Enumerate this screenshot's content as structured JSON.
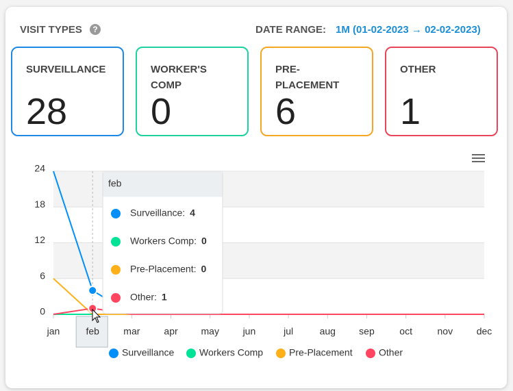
{
  "header": {
    "title": "VISIT TYPES",
    "range_label": "DATE RANGE:",
    "range_value": "1M (01-02-2023 → 02-02-2023)"
  },
  "cards": [
    {
      "label": "SURVEILLANCE",
      "value": "28",
      "color": "#1e88e5"
    },
    {
      "label": "WORKER'S COMP",
      "value": "0",
      "color": "#1dd1a1"
    },
    {
      "label": "PRE-PLACEMENT",
      "value": "6",
      "color": "#f5a623"
    },
    {
      "label": "OTHER",
      "value": "1",
      "color": "#e8455a"
    }
  ],
  "chart_data": {
    "type": "line",
    "categories": [
      "jan",
      "feb",
      "mar",
      "apr",
      "may",
      "jun",
      "jul",
      "aug",
      "sep",
      "oct",
      "nov",
      "dec"
    ],
    "series": [
      {
        "name": "Surveillance",
        "color": "#008ffb",
        "values": [
          24,
          4,
          0,
          0,
          0,
          0,
          0,
          0,
          0,
          0,
          0,
          0
        ]
      },
      {
        "name": "Workers Comp",
        "color": "#00e396",
        "values": [
          0,
          0,
          0,
          0,
          0,
          0,
          0,
          0,
          0,
          0,
          0,
          0
        ]
      },
      {
        "name": "Pre-Placement",
        "color": "#feb019",
        "values": [
          6,
          0,
          0,
          0,
          0,
          0,
          0,
          0,
          0,
          0,
          0,
          0
        ]
      },
      {
        "name": "Other",
        "color": "#ff4560",
        "values": [
          0,
          1,
          0,
          0,
          0,
          0,
          0,
          0,
          0,
          0,
          0,
          0
        ]
      }
    ],
    "ylim": [
      0,
      24
    ],
    "yticks": [
      0,
      6,
      12,
      18,
      24
    ],
    "grid": true,
    "legend": "bottom",
    "tooltip": {
      "category_index": 1,
      "labels": [
        "Surveillance:",
        "Workers Comp:",
        "Pre-Placement:",
        "Other:"
      ]
    }
  }
}
